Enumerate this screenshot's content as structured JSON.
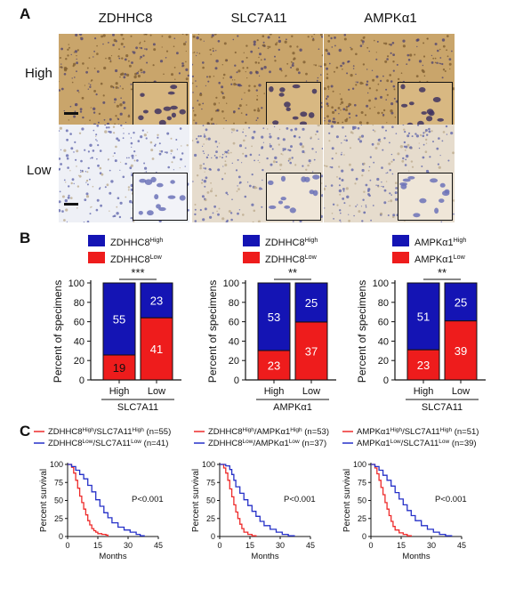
{
  "panel_a": {
    "label": "A",
    "columns": [
      "ZDHHC8",
      "SLC7A11",
      "AMPKα1"
    ],
    "rows": [
      "High",
      "Low"
    ],
    "colors": {
      "high_stain": "#c9a56b",
      "low_stain": "#e6dccd",
      "nuclei": "#3d3f8c"
    }
  },
  "panel_b": {
    "label": "B",
    "colors": {
      "high": "#1414b4",
      "low": "#ee1c1c"
    },
    "charts": [
      {
        "legend": [
          {
            "base": "ZDHHC8",
            "sup": "High"
          },
          {
            "base": "ZDHHC8",
            "sup": "Low"
          }
        ],
        "significance": "***",
        "xgroup": "SLC7A11"
      },
      {
        "legend": [
          {
            "base": "ZDHHC8",
            "sup": "High"
          },
          {
            "base": "ZDHHC8",
            "sup": "Low"
          }
        ],
        "significance": "**",
        "xgroup": "AMPKα1"
      },
      {
        "legend": [
          {
            "base": "AMPKα1",
            "sup": "High"
          },
          {
            "base": "AMPKα1",
            "sup": "Low"
          }
        ],
        "significance": "**",
        "xgroup": "SLC7A11"
      }
    ]
  },
  "panel_c": {
    "label": "C",
    "pvalue": "P<0.001",
    "colors": {
      "high": "#ee2a2a",
      "low": "#2530c8"
    },
    "legends": [
      [
        {
          "a": "ZDHHC8",
          "as": "High",
          "b": "SLC7A11",
          "bs": "High",
          "n": "(n=55)"
        },
        {
          "a": "ZDHHC8",
          "as": "Low",
          "b": "SLC7A11",
          "bs": "Low",
          "n": "(n=41)"
        }
      ],
      [
        {
          "a": "ZDHHC8",
          "as": "High",
          "b": "AMPKα1",
          "bs": "High",
          "n": "(n=53)"
        },
        {
          "a": "ZDHHC8",
          "as": "Low",
          "b": "AMPKα1",
          "bs": "Low",
          "n": "(n=37)"
        }
      ],
      [
        {
          "a": "AMPKα1",
          "as": "High",
          "b": "SLC7A11",
          "bs": "High",
          "n": "(n=51)"
        },
        {
          "a": "AMPKα1",
          "as": "Low",
          "b": "SLC7A11",
          "bs": "Low",
          "n": "(n=39)"
        }
      ]
    ]
  },
  "chart_data": [
    {
      "type": "bar",
      "stacked": true,
      "ylabel": "Percent of specimens",
      "ylim": [
        0,
        100
      ],
      "yticks": [
        0,
        20,
        40,
        60,
        80,
        100
      ],
      "categories": [
        "High",
        "Low"
      ],
      "xgroup": "SLC7A11",
      "series": [
        {
          "name": "ZDHHC8 Low",
          "values": [
            25.7,
            64.1
          ],
          "counts": [
            19,
            41
          ]
        },
        {
          "name": "ZDHHC8 High",
          "values": [
            74.3,
            35.9
          ],
          "counts": [
            55,
            23
          ]
        }
      ]
    },
    {
      "type": "bar",
      "stacked": true,
      "ylabel": "Percent of specimens",
      "ylim": [
        0,
        100
      ],
      "yticks": [
        0,
        20,
        40,
        60,
        80,
        100
      ],
      "categories": [
        "High",
        "Low"
      ],
      "xgroup": "AMPKα1",
      "series": [
        {
          "name": "ZDHHC8 Low",
          "values": [
            30.3,
            59.7
          ],
          "counts": [
            23,
            37
          ]
        },
        {
          "name": "ZDHHC8 High",
          "values": [
            69.7,
            40.3
          ],
          "counts": [
            53,
            25
          ]
        }
      ]
    },
    {
      "type": "bar",
      "stacked": true,
      "ylabel": "Percent of specimens",
      "ylim": [
        0,
        100
      ],
      "yticks": [
        0,
        20,
        40,
        60,
        80,
        100
      ],
      "categories": [
        "High",
        "Low"
      ],
      "xgroup": "SLC7A11",
      "series": [
        {
          "name": "AMPKα1 Low",
          "values": [
            31.1,
            60.9
          ],
          "counts": [
            23,
            39
          ]
        },
        {
          "name": "AMPKα1 High",
          "values": [
            68.9,
            39.1
          ],
          "counts": [
            51,
            25
          ]
        }
      ]
    },
    {
      "type": "line",
      "step": true,
      "xlabel": "Months",
      "ylabel": "Percent survival",
      "xlim": [
        0,
        45
      ],
      "ylim": [
        0,
        100
      ],
      "xticks": [
        0,
        15,
        30,
        45
      ],
      "yticks": [
        0,
        25,
        50,
        75,
        100
      ],
      "series": [
        {
          "name": "High",
          "x": [
            0,
            2,
            3,
            4,
            5,
            6,
            7,
            8,
            9,
            10,
            11,
            12,
            13,
            14,
            15,
            17,
            19,
            20
          ],
          "y": [
            100,
            96,
            88,
            78,
            67,
            56,
            47,
            38,
            30,
            22,
            16,
            11,
            8,
            6,
            4,
            3,
            2,
            0
          ]
        },
        {
          "name": "Low",
          "x": [
            0,
            2,
            4,
            6,
            8,
            10,
            12,
            14,
            16,
            18,
            20,
            22,
            25,
            28,
            31,
            34,
            36,
            38
          ],
          "y": [
            100,
            97,
            92,
            86,
            80,
            71,
            62,
            51,
            42,
            33,
            26,
            19,
            13,
            9,
            6,
            3,
            1,
            0
          ]
        }
      ]
    },
    {
      "type": "line",
      "step": true,
      "xlabel": "Months",
      "ylabel": "Percent survival",
      "xlim": [
        0,
        45
      ],
      "ylim": [
        0,
        100
      ],
      "xticks": [
        0,
        15,
        30,
        45
      ],
      "yticks": [
        0,
        25,
        50,
        75,
        100
      ],
      "series": [
        {
          "name": "High",
          "x": [
            0,
            2,
            3,
            4,
            5,
            6,
            7,
            8,
            9,
            10,
            11,
            12,
            14,
            16,
            18
          ],
          "y": [
            100,
            95,
            88,
            78,
            66,
            55,
            44,
            34,
            25,
            17,
            11,
            6,
            3,
            1,
            0
          ]
        },
        {
          "name": "Low",
          "x": [
            0,
            3,
            5,
            6,
            7,
            8,
            10,
            12,
            14,
            16,
            18,
            20,
            22,
            25,
            28,
            31,
            34,
            37
          ],
          "y": [
            100,
            98,
            93,
            86,
            78,
            69,
            60,
            51,
            43,
            35,
            28,
            21,
            15,
            10,
            6,
            3,
            1,
            0
          ]
        }
      ]
    },
    {
      "type": "line",
      "step": true,
      "xlabel": "Months",
      "ylabel": "Percent survival",
      "xlim": [
        0,
        45
      ],
      "ylim": [
        0,
        100
      ],
      "xticks": [
        0,
        15,
        30,
        45
      ],
      "yticks": [
        0,
        25,
        50,
        75,
        100
      ],
      "series": [
        {
          "name": "High",
          "x": [
            0,
            2,
            3,
            4,
            5,
            6,
            7,
            8,
            9,
            10,
            11,
            12,
            14,
            16,
            18,
            20
          ],
          "y": [
            100,
            95,
            87,
            78,
            68,
            58,
            47,
            38,
            29,
            21,
            14,
            9,
            5,
            3,
            1,
            0
          ]
        },
        {
          "name": "Low",
          "x": [
            0,
            2,
            4,
            6,
            8,
            10,
            12,
            14,
            16,
            18,
            20,
            22,
            25,
            28,
            31,
            34,
            37,
            40
          ],
          "y": [
            100,
            97,
            92,
            85,
            78,
            70,
            61,
            52,
            44,
            36,
            29,
            22,
            15,
            10,
            6,
            3,
            1,
            0
          ]
        }
      ]
    }
  ]
}
